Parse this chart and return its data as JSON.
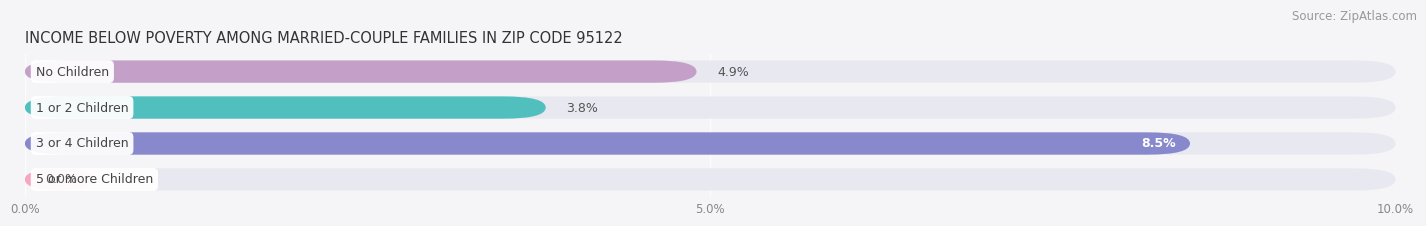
{
  "title": "INCOME BELOW POVERTY AMONG MARRIED-COUPLE FAMILIES IN ZIP CODE 95122",
  "source": "Source: ZipAtlas.com",
  "categories": [
    "No Children",
    "1 or 2 Children",
    "3 or 4 Children",
    "5 or more Children"
  ],
  "values": [
    4.9,
    3.8,
    8.5,
    0.0
  ],
  "bar_colors": [
    "#c4a0c8",
    "#52bfbf",
    "#8888cc",
    "#f4a8c0"
  ],
  "bar_bg_color": "#e8e8f0",
  "xlim": [
    0,
    10.0
  ],
  "xtick_labels": [
    "0.0%",
    "5.0%",
    "10.0%"
  ],
  "title_fontsize": 10.5,
  "source_fontsize": 8.5,
  "label_fontsize": 9,
  "value_fontsize": 9,
  "background_color": "#f5f5f8",
  "bar_height": 0.62,
  "bar_gap": 0.38,
  "label_text_color": "#444444",
  "value_text_color": "#555555",
  "tick_color": "#888888",
  "spine_color": "#cccccc"
}
